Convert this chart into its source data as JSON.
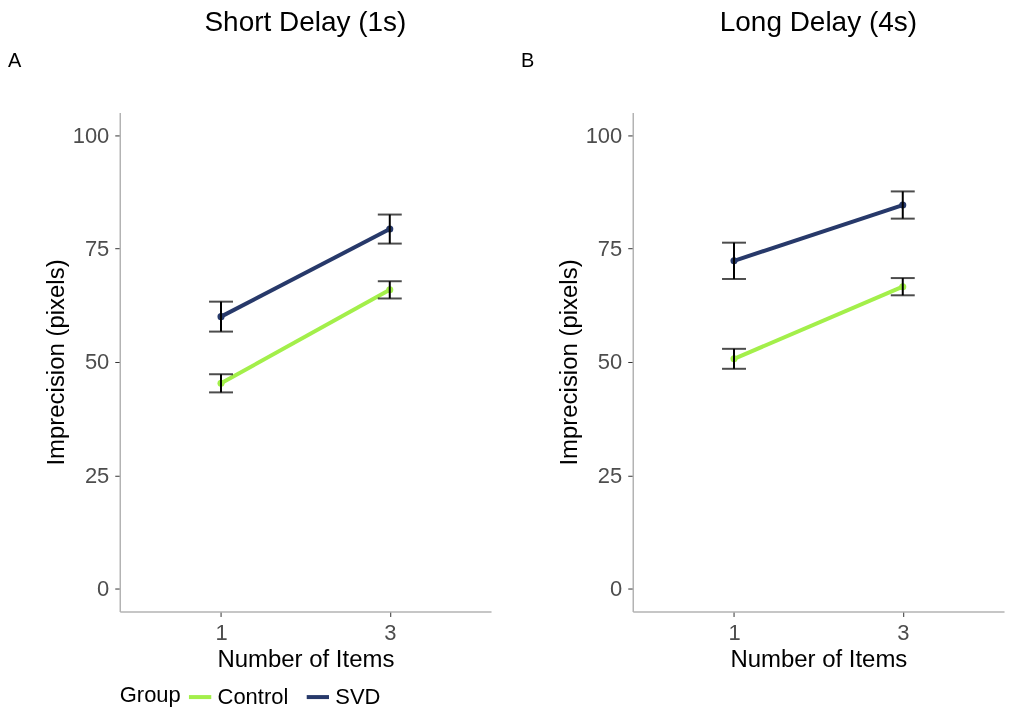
{
  "chart_data": [
    {
      "type": "line",
      "title": "Short Delay (1s)",
      "xlabel": "Number of Items",
      "ylabel": "Imprecision (pixels)",
      "legend_title": "Group",
      "categories": [
        "1",
        "3"
      ],
      "ylim": [
        -5,
        105
      ],
      "yticks": [
        0,
        25,
        50,
        75,
        100
      ],
      "grid": false,
      "legend": "bottom",
      "marker": "circle",
      "line_style": "solid",
      "annotations": [
        "A"
      ],
      "series": [
        {
          "name": "Control",
          "color": "#a3ef4a",
          "values": [
            45.3,
            65.9
          ],
          "errors": [
            2.0,
            1.9
          ]
        },
        {
          "name": "SVD",
          "color": "#27396a",
          "values": [
            60.0,
            79.3
          ],
          "errors": [
            3.3,
            3.2
          ]
        }
      ]
    },
    {
      "type": "line",
      "title": "Long Delay (4s)",
      "xlabel": "Number of Items",
      "ylabel": "Imprecision (pixels)",
      "categories": [
        "1",
        "3"
      ],
      "ylim": [
        -5,
        105
      ],
      "yticks": [
        0,
        25,
        50,
        75,
        100
      ],
      "grid": false,
      "marker": "circle",
      "line_style": "solid",
      "annotations": [
        "B"
      ],
      "series": [
        {
          "name": "Control",
          "color": "#a3ef4a",
          "values": [
            50.7,
            66.6
          ],
          "errors": [
            2.2,
            1.9
          ]
        },
        {
          "name": "SVD",
          "color": "#27396a",
          "values": [
            72.3,
            84.6
          ],
          "errors": [
            4.0,
            3.0
          ]
        }
      ]
    }
  ]
}
